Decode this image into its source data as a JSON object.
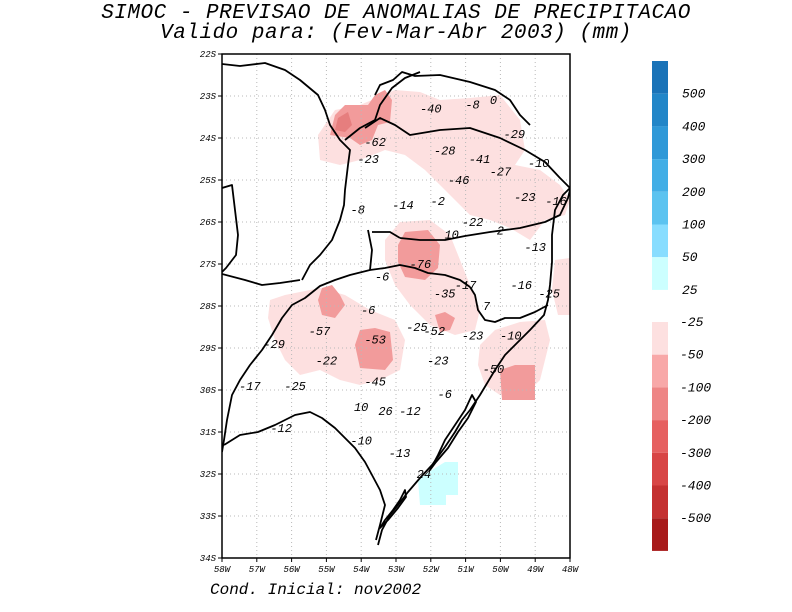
{
  "title_line1": "SIMOC - PREVISAO DE ANOMALIAS DE PRECIPITACAO",
  "title_line2": "Valido para: (Fev-Mar-Abr 2003) (mm)",
  "footer": "Cond. Inicial: nov2002",
  "colors": {
    "pos": [
      "#ccffff",
      "#88ddff",
      "#5cc3f0",
      "#42aee6",
      "#2f99d8",
      "#2286c8",
      "#1a73b8"
    ],
    "neg": [
      "#fde0e0",
      "#f8a8a8",
      "#ee8585",
      "#e66060",
      "#d84545",
      "#c43030",
      "#a81a1a"
    ],
    "grid": "#b0b0b0"
  },
  "map": {
    "lat_ticks": [
      "23S",
      "24S",
      "25S",
      "26S",
      "27S",
      "28S",
      "29S",
      "30S",
      "31S",
      "32S",
      "33S",
      "34S"
    ],
    "lat_top_label": "22S",
    "lon_ticks": [
      "58W",
      "57W",
      "56W",
      "55W",
      "54W",
      "53W",
      "52W",
      "51W",
      "50W",
      "49W",
      "48W"
    ],
    "lat_range": [
      -34,
      -22
    ],
    "lon_range": [
      -58,
      -48
    ]
  },
  "legend": {
    "positive_labels": [
      "500",
      "400",
      "300",
      "200",
      "100",
      "50",
      "25"
    ],
    "negative_labels": [
      "-25",
      "-50",
      "-100",
      "-200",
      "-300",
      "-400",
      "-500"
    ]
  },
  "anomaly_values": [
    {
      "value": "-40",
      "lon": -52.0,
      "lat": -23.3
    },
    {
      "value": "-8",
      "lon": -50.8,
      "lat": -23.2
    },
    {
      "value": "0",
      "lon": -50.2,
      "lat": -23.1
    },
    {
      "value": "-29",
      "lon": -49.6,
      "lat": -23.9
    },
    {
      "value": "-62",
      "lon": -53.6,
      "lat": -24.1
    },
    {
      "value": "-28",
      "lon": -51.6,
      "lat": -24.3
    },
    {
      "value": "-23",
      "lon": -53.8,
      "lat": -24.5
    },
    {
      "value": "-41",
      "lon": -50.6,
      "lat": -24.5
    },
    {
      "value": "-10",
      "lon": -48.9,
      "lat": -24.6
    },
    {
      "value": "-27",
      "lon": -50.0,
      "lat": -24.8
    },
    {
      "value": "-46",
      "lon": -51.2,
      "lat": -25.0
    },
    {
      "value": "-23",
      "lon": -49.3,
      "lat": -25.4
    },
    {
      "value": "-16",
      "lon": -48.4,
      "lat": -25.5
    },
    {
      "value": "-14",
      "lon": -52.8,
      "lat": -25.6
    },
    {
      "value": "-2",
      "lon": -51.8,
      "lat": -25.5
    },
    {
      "value": "-8",
      "lon": -54.1,
      "lat": -25.7
    },
    {
      "value": "-22",
      "lon": -50.8,
      "lat": -26.0
    },
    {
      "value": "2",
      "lon": -50.0,
      "lat": -26.2
    },
    {
      "value": "10",
      "lon": -51.4,
      "lat": -26.3
    },
    {
      "value": "-13",
      "lon": -49.0,
      "lat": -26.6
    },
    {
      "value": "-76",
      "lon": -52.3,
      "lat": -27.0
    },
    {
      "value": "-6",
      "lon": -53.4,
      "lat": -27.3
    },
    {
      "value": "-17",
      "lon": -51.0,
      "lat": -27.5
    },
    {
      "value": "-16",
      "lon": -49.4,
      "lat": -27.5
    },
    {
      "value": "-35",
      "lon": -51.6,
      "lat": -27.7
    },
    {
      "value": "-25",
      "lon": -48.6,
      "lat": -27.7
    },
    {
      "value": "7",
      "lon": -50.4,
      "lat": -28.0
    },
    {
      "value": "-6",
      "lon": -53.8,
      "lat": -28.1
    },
    {
      "value": "-57",
      "lon": -55.2,
      "lat": -28.6
    },
    {
      "value": "-25",
      "lon": -52.4,
      "lat": -28.5
    },
    {
      "value": "-52",
      "lon": -51.9,
      "lat": -28.6
    },
    {
      "value": "-23",
      "lon": -50.8,
      "lat": -28.7
    },
    {
      "value": "-10",
      "lon": -49.7,
      "lat": -28.7
    },
    {
      "value": "-53",
      "lon": -53.6,
      "lat": -28.8
    },
    {
      "value": "-29",
      "lon": -56.5,
      "lat": -28.9
    },
    {
      "value": "-22",
      "lon": -55.0,
      "lat": -29.3
    },
    {
      "value": "-23",
      "lon": -51.8,
      "lat": -29.3
    },
    {
      "value": "-50",
      "lon": -50.2,
      "lat": -29.5
    },
    {
      "value": "-45",
      "lon": -53.6,
      "lat": -29.8
    },
    {
      "value": "-25",
      "lon": -55.9,
      "lat": -29.9
    },
    {
      "value": "-17",
      "lon": -57.2,
      "lat": -29.9
    },
    {
      "value": "-6",
      "lon": -51.6,
      "lat": -30.1
    },
    {
      "value": "10",
      "lon": -54.0,
      "lat": -30.4
    },
    {
      "value": "26",
      "lon": -53.3,
      "lat": -30.5
    },
    {
      "value": "-12",
      "lon": -52.6,
      "lat": -30.5
    },
    {
      "value": "-12",
      "lon": -56.3,
      "lat": -30.9
    },
    {
      "value": "-10",
      "lon": -54.0,
      "lat": -31.2
    },
    {
      "value": "-13",
      "lon": -52.9,
      "lat": -31.5
    },
    {
      "value": "24",
      "lon": -52.2,
      "lat": -32.0
    }
  ],
  "positive_zone_cells": [
    {
      "lon": -52.4,
      "lat": -32.5,
      "level": 1
    },
    {
      "lon": -52.1,
      "lat": -32.5,
      "level": 1
    },
    {
      "lon": -51.8,
      "lat": -32.5,
      "level": 1
    },
    {
      "lon": -51.8,
      "lat": -32.2,
      "level": 1
    },
    {
      "lon": -51.5,
      "lat": -32.2,
      "level": 1
    },
    {
      "lon": -51.5,
      "lat": -31.9,
      "level": 1
    },
    {
      "lon": -52.1,
      "lat": -32.2,
      "level": 1
    }
  ]
}
